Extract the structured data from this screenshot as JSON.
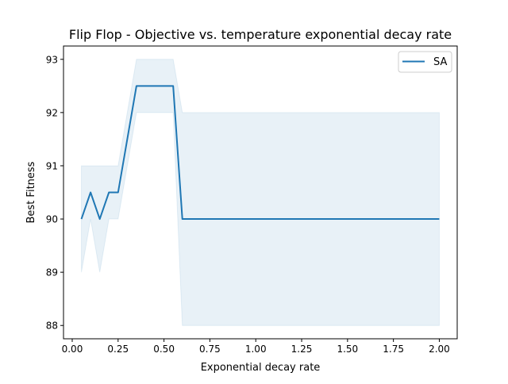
{
  "chart_data": {
    "type": "line",
    "title": "Flip Flop - Objective vs. temperature exponential decay rate",
    "xlabel": "Exponential decay rate",
    "ylabel": "Best Fitness",
    "xlim": [
      -0.0475,
      2.0975
    ],
    "ylim": [
      87.75,
      93.25
    ],
    "xticks": [
      0.0,
      0.25,
      0.5,
      0.75,
      1.0,
      1.25,
      1.5,
      1.75,
      2.0
    ],
    "xtick_labels": [
      "0.00",
      "0.25",
      "0.50",
      "0.75",
      "1.00",
      "1.25",
      "1.50",
      "1.75",
      "2.00"
    ],
    "yticks": [
      88,
      89,
      90,
      91,
      92,
      93
    ],
    "ytick_labels": [
      "88",
      "89",
      "90",
      "91",
      "92",
      "93"
    ],
    "grid": false,
    "legend": {
      "placement": "upper right",
      "entries": [
        "SA"
      ]
    },
    "series": [
      {
        "name": "SA",
        "color": "#1f77b4",
        "band_color": "#1f77b4",
        "x": [
          0.05,
          0.1,
          0.15,
          0.2,
          0.25,
          0.35,
          0.45,
          0.55,
          0.6,
          0.7,
          0.8,
          0.9,
          1.0,
          1.25,
          1.5,
          1.75,
          2.0
        ],
        "y": [
          90.0,
          90.5,
          90.0,
          90.5,
          90.5,
          92.5,
          92.5,
          92.5,
          90.0,
          90.0,
          90.0,
          90.0,
          90.0,
          90.0,
          90.0,
          90.0,
          90.0
        ],
        "lower": [
          89.0,
          90.0,
          89.0,
          90.0,
          90.0,
          92.0,
          92.0,
          92.0,
          88.0,
          88.0,
          88.0,
          88.0,
          88.0,
          88.0,
          88.0,
          88.0,
          88.0
        ],
        "upper": [
          91.0,
          91.0,
          91.0,
          91.0,
          91.0,
          93.0,
          93.0,
          93.0,
          92.0,
          92.0,
          92.0,
          92.0,
          92.0,
          92.0,
          92.0,
          92.0,
          92.0
        ]
      }
    ]
  }
}
